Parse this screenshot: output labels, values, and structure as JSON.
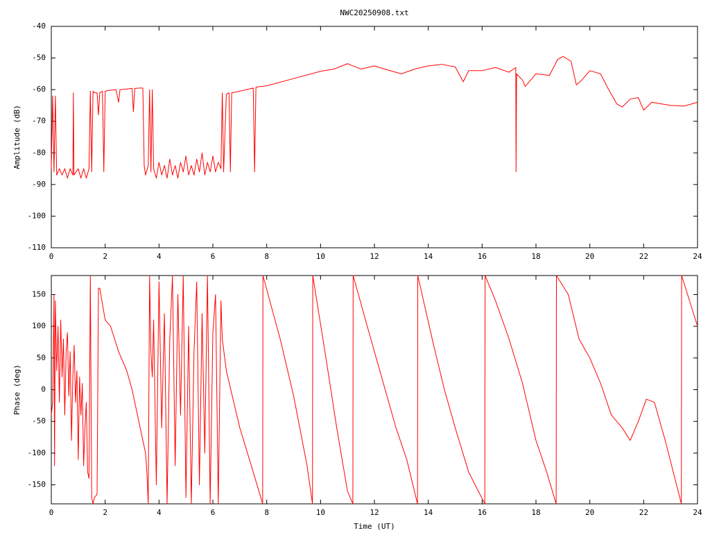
{
  "chart_data": [
    {
      "type": "line",
      "title": "NWC20250908.txt",
      "ylabel": "Amplitude (dB)",
      "xlim": [
        0,
        24
      ],
      "xticks": [
        0,
        2,
        4,
        6,
        8,
        10,
        12,
        14,
        16,
        18,
        20,
        22,
        24
      ],
      "ylim": [
        -110,
        -40
      ],
      "yticks": [
        -110,
        -100,
        -90,
        -80,
        -70,
        -60,
        -50,
        -40
      ],
      "grid": false,
      "x": [
        0,
        0.05,
        0.1,
        0.15,
        0.2,
        0.3,
        0.4,
        0.5,
        0.6,
        0.7,
        0.8,
        0.82,
        0.84,
        1.0,
        1.1,
        1.2,
        1.3,
        1.4,
        1.45,
        1.5,
        1.55,
        1.6,
        1.7,
        1.75,
        1.8,
        1.9,
        1.95,
        2.0,
        2.2,
        2.4,
        2.5,
        2.55,
        2.8,
        3.0,
        3.05,
        3.1,
        3.3,
        3.4,
        3.45,
        3.5,
        3.6,
        3.65,
        3.7,
        3.75,
        3.8,
        3.9,
        4.0,
        4.1,
        4.2,
        4.3,
        4.4,
        4.5,
        4.6,
        4.7,
        4.8,
        4.9,
        5.0,
        5.1,
        5.2,
        5.3,
        5.4,
        5.5,
        5.6,
        5.7,
        5.8,
        5.9,
        6.0,
        6.1,
        6.2,
        6.3,
        6.35,
        6.4,
        6.5,
        6.6,
        6.65,
        6.7,
        7.0,
        7.5,
        7.55,
        7.6,
        8,
        9,
        10,
        10.5,
        11,
        11.5,
        12,
        12.5,
        13,
        13.5,
        14,
        14.5,
        15,
        15.3,
        15.5,
        16,
        16.5,
        17,
        17.25,
        17.26,
        17.28,
        17.5,
        17.6,
        18,
        18.5,
        18.8,
        19,
        19.3,
        19.5,
        19.7,
        20,
        20.4,
        20.7,
        21,
        21.2,
        21.5,
        21.8,
        22,
        22.3,
        23,
        23.5,
        24
      ],
      "series": [
        {
          "name": "amplitude",
          "color": "#ff0000",
          "values": [
            -85,
            -62,
            -86,
            -62,
            -87,
            -85,
            -87,
            -85,
            -88,
            -85,
            -87,
            -61,
            -87,
            -85,
            -88,
            -85,
            -88,
            -85,
            -60.5,
            -86,
            -60.5,
            -61,
            -61,
            -68,
            -61,
            -60.5,
            -86,
            -60.5,
            -60.2,
            -60,
            -64,
            -60,
            -59.8,
            -59.6,
            -67,
            -59.6,
            -59.5,
            -59.5,
            -84,
            -87,
            -84,
            -60,
            -86,
            -60,
            -85,
            -88,
            -83,
            -87,
            -84,
            -88,
            -82,
            -87,
            -84,
            -88,
            -83,
            -86,
            -81,
            -87,
            -84,
            -87,
            -82,
            -86,
            -80,
            -87,
            -83,
            -86,
            -81,
            -86,
            -83,
            -85,
            -61,
            -86,
            -61.5,
            -61,
            -86,
            -61,
            -60.5,
            -59.5,
            -86,
            -59.2,
            -58.8,
            -56.5,
            -54.2,
            -53.5,
            -51.8,
            -53.5,
            -52.5,
            -53.8,
            -55,
            -53.5,
            -52.5,
            -52,
            -52.8,
            -57.5,
            -54,
            -54,
            -53,
            -54.5,
            -53,
            -86,
            -55,
            -57,
            -59,
            -55,
            -55.5,
            -50.5,
            -49.5,
            -51,
            -58.5,
            -57,
            -54,
            -55,
            -60,
            -64.5,
            -65.5,
            -63,
            -62.5,
            -66.5,
            -64,
            -65,
            -65.2,
            -64
          ]
        }
      ]
    },
    {
      "type": "line",
      "ylabel": "Phase (deg)",
      "xlabel": "Time (UT)",
      "xlim": [
        0,
        24
      ],
      "xticks": [
        0,
        2,
        4,
        6,
        8,
        10,
        12,
        14,
        16,
        18,
        20,
        22,
        24
      ],
      "ylim": [
        -180,
        180
      ],
      "yticks": [
        -150,
        -100,
        -50,
        0,
        50,
        100,
        150
      ],
      "grid": false,
      "x": [
        0,
        0.05,
        0.1,
        0.12,
        0.15,
        0.2,
        0.25,
        0.3,
        0.35,
        0.4,
        0.45,
        0.5,
        0.55,
        0.6,
        0.65,
        0.7,
        0.75,
        0.8,
        0.85,
        0.9,
        0.95,
        1.0,
        1.05,
        1.1,
        1.15,
        1.2,
        1.25,
        1.3,
        1.35,
        1.4,
        1.45,
        1.5,
        1.55,
        1.6,
        1.7,
        1.75,
        1.8,
        2.0,
        2.2,
        2.5,
        2.8,
        3.0,
        3.2,
        3.4,
        3.5,
        3.55,
        3.6,
        3.65,
        3.7,
        3.75,
        3.8,
        3.9,
        4.0,
        4.1,
        4.2,
        4.3,
        4.4,
        4.5,
        4.6,
        4.7,
        4.8,
        4.9,
        5.0,
        5.1,
        5.2,
        5.3,
        5.4,
        5.5,
        5.6,
        5.7,
        5.8,
        5.9,
        6.0,
        6.1,
        6.2,
        6.3,
        6.35,
        6.5,
        7.0,
        7.5,
        7.85,
        7.86,
        8.5,
        9,
        9.5,
        9.7,
        9.71,
        10.2,
        10.6,
        11,
        11.2,
        11.21,
        11.8,
        12.4,
        12.8,
        13.2,
        13.6,
        13.61,
        14.2,
        14.6,
        15,
        15.5,
        16.1,
        16.11,
        16.5,
        17,
        17.5,
        18,
        18.4,
        18.75,
        18.76,
        19.2,
        19.6,
        20,
        20.4,
        20.8,
        21.2,
        21.5,
        21.8,
        22.1,
        22.4,
        22.8,
        23.1,
        23.4,
        23.41,
        24
      ],
      "series": [
        {
          "name": "phase",
          "color": "#ff0000",
          "values": [
            -40,
            -20,
            150,
            -120,
            140,
            30,
            100,
            -20,
            110,
            20,
            80,
            -40,
            60,
            90,
            -10,
            60,
            -80,
            20,
            70,
            -20,
            30,
            -110,
            20,
            -40,
            10,
            -120,
            -60,
            -20,
            -130,
            -140,
            180,
            -170,
            -180,
            -170,
            -165,
            160,
            160,
            110,
            100,
            60,
            30,
            0,
            -40,
            -80,
            -100,
            -130,
            -180,
            180,
            60,
            20,
            110,
            -150,
            170,
            -60,
            120,
            -180,
            80,
            180,
            -120,
            150,
            -40,
            180,
            -170,
            100,
            -180,
            60,
            170,
            -150,
            120,
            -100,
            180,
            -180,
            90,
            150,
            -180,
            140,
            80,
            30,
            -60,
            -130,
            -180,
            180,
            80,
            -10,
            -120,
            -180,
            180,
            50,
            -60,
            -160,
            -180,
            180,
            90,
            0,
            -60,
            -110,
            -180,
            180,
            70,
            0,
            -60,
            -130,
            -180,
            180,
            140,
            80,
            10,
            -80,
            -130,
            -180,
            180,
            150,
            80,
            50,
            10,
            -40,
            -60,
            -80,
            -50,
            -15,
            -20,
            -80,
            -130,
            -180,
            180,
            100
          ]
        }
      ]
    }
  ]
}
